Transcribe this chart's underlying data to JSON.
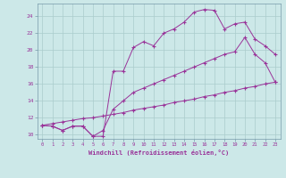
{
  "xlabel": "Windchill (Refroidissement éolien,°C)",
  "background_color": "#cce8e8",
  "grid_color": "#aacccc",
  "line_color": "#993399",
  "xlim": [
    -0.5,
    23.5
  ],
  "ylim": [
    9.5,
    25.5
  ],
  "yticks": [
    10,
    12,
    14,
    16,
    18,
    20,
    22,
    24
  ],
  "xticks": [
    0,
    1,
    2,
    3,
    4,
    5,
    6,
    7,
    8,
    9,
    10,
    11,
    12,
    13,
    14,
    15,
    16,
    17,
    18,
    19,
    20,
    21,
    22,
    23
  ],
  "series1_x": [
    0,
    1,
    2,
    3,
    4,
    5,
    6,
    7,
    8,
    9,
    10,
    11,
    12,
    13,
    14,
    15,
    16,
    17,
    18,
    19,
    20,
    21,
    22,
    23
  ],
  "series1_y": [
    11.1,
    11.0,
    10.5,
    11.0,
    11.0,
    9.8,
    9.8,
    17.5,
    17.5,
    20.3,
    21.0,
    20.5,
    22.0,
    22.5,
    23.3,
    24.5,
    24.8,
    24.7,
    22.5,
    23.1,
    23.3,
    21.3,
    20.5,
    19.5
  ],
  "series2_x": [
    0,
    1,
    2,
    3,
    4,
    5,
    6,
    7,
    8,
    9,
    10,
    11,
    12,
    13,
    14,
    15,
    16,
    17,
    18,
    19,
    20,
    21,
    22,
    23
  ],
  "series2_y": [
    11.1,
    11.0,
    10.5,
    11.0,
    11.0,
    9.8,
    10.5,
    13.0,
    14.0,
    15.0,
    15.5,
    16.0,
    16.5,
    17.0,
    17.5,
    18.0,
    18.5,
    19.0,
    19.5,
    19.8,
    21.5,
    19.5,
    18.5,
    16.2
  ],
  "series3_x": [
    0,
    1,
    2,
    3,
    4,
    5,
    6,
    7,
    8,
    9,
    10,
    11,
    12,
    13,
    14,
    15,
    16,
    17,
    18,
    19,
    20,
    21,
    22,
    23
  ],
  "series3_y": [
    11.1,
    11.3,
    11.5,
    11.7,
    11.9,
    12.0,
    12.2,
    12.4,
    12.6,
    12.9,
    13.1,
    13.3,
    13.5,
    13.8,
    14.0,
    14.2,
    14.5,
    14.7,
    15.0,
    15.2,
    15.5,
    15.7,
    16.0,
    16.2
  ]
}
